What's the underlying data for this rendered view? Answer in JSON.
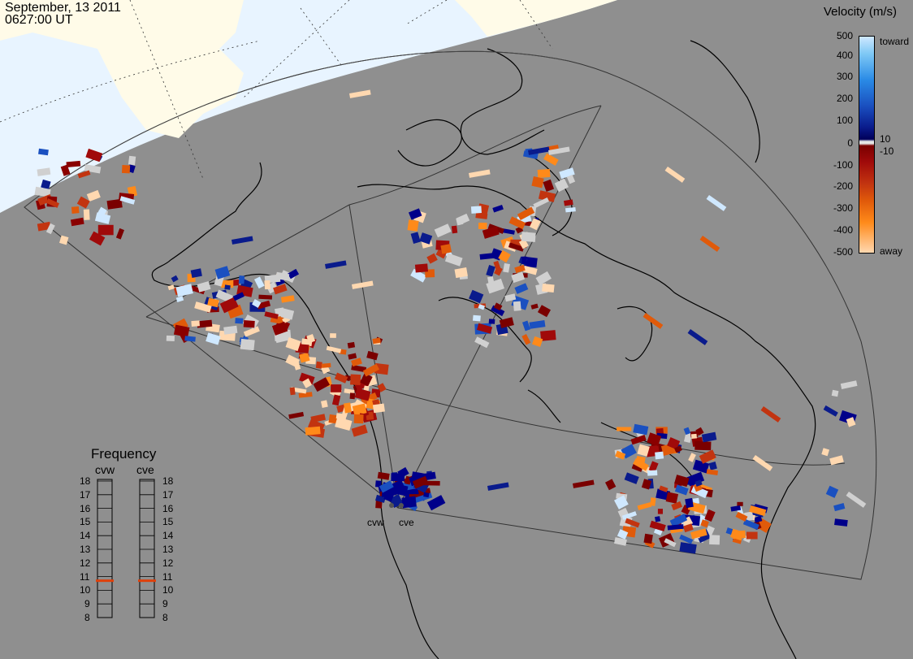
{
  "timestamp": {
    "date": "September, 13 2011",
    "time": "0627:00 UT"
  },
  "velocity_legend": {
    "title": "Velocity (m/s)",
    "ticks": [
      "500",
      "400",
      "300",
      "200",
      "100",
      "10",
      "0",
      "-10",
      "-100",
      "-200",
      "-300",
      "-400",
      "-500"
    ],
    "toward_label": "toward",
    "away_label": "away",
    "colors": {
      "toward_light": "#cfe8ff",
      "toward_dark": "#00005a",
      "ground_scatter": "#e6e6e6",
      "away_dark": "#7a0000",
      "away_light": "#ffd8b0"
    }
  },
  "frequency_legend": {
    "title": "Frequency",
    "radars": [
      "cvw",
      "cve"
    ],
    "scale_mhz": [
      18,
      17,
      16,
      15,
      14,
      13,
      12,
      11,
      10,
      9,
      8
    ],
    "cvw_frequency_mhz": 10.7,
    "cve_frequency_mhz": 10.7,
    "indicator_color": "#e0400a"
  },
  "radar_sites": {
    "west_label": "cvw",
    "east_label": "cve"
  },
  "map_colors": {
    "night": "#8f8f8f",
    "day_land": "#fffbe8",
    "day_ocean": "#e8f4ff"
  }
}
